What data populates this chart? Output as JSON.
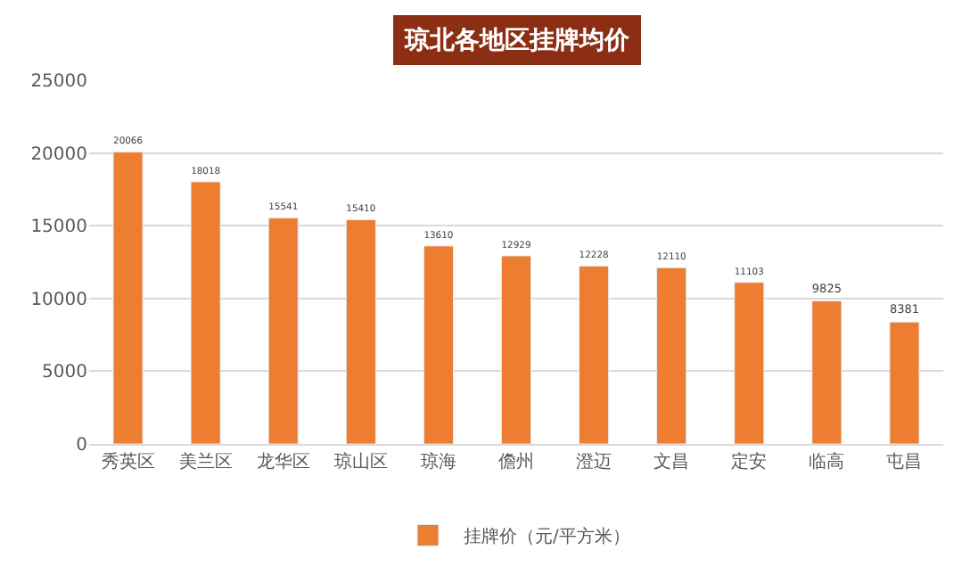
{
  "chart_data": {
    "type": "bar",
    "title": "琼北各地区挂牌均价",
    "categories": [
      "秀英区",
      "美兰区",
      "龙华区",
      "琼山区",
      "琼海",
      "儋州",
      "澄迈",
      "文昌",
      "定安",
      "临高",
      "屯昌"
    ],
    "series": [
      {
        "name": "挂牌价（元/平方米）",
        "color": "#ed7d31",
        "values": [
          20066,
          18018,
          15541,
          15410,
          13610,
          12929,
          12228,
          12110,
          11103,
          9825,
          8381
        ]
      }
    ],
    "ylim": [
      0,
      25000
    ],
    "yticks": [
      0,
      5000,
      10000,
      15000,
      20000,
      25000
    ],
    "grid": "y",
    "legend": "bottom",
    "data_labels": true
  }
}
